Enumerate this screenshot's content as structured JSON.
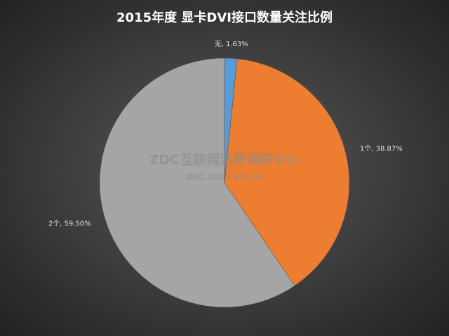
{
  "chart_data": {
    "type": "pie",
    "title": "2015年度  显卡DVI接口数量关注比例",
    "values": [
      1.63,
      38.87,
      59.5
    ],
    "value_labels": [
      "无, 1.63%",
      "1个, 38.87%",
      "2个, 59.50%"
    ],
    "colors": [
      "#5b9bd5",
      "#ed7d31",
      "#a5a5a5"
    ],
    "watermark": {
      "text": "ZDC互联网消费调研中心",
      "url": "ZDC.ZOL.COM.CN"
    }
  }
}
